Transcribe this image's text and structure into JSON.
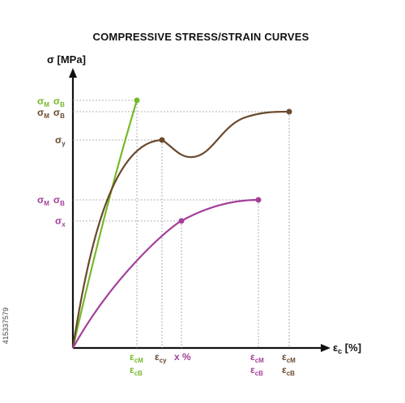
{
  "title": "COMPRESSIVE STRESS/STRAIN CURVES",
  "colors": {
    "green": "#76b82a",
    "brown": "#6b4a2e",
    "purple": "#a4409a",
    "axis": "#111111",
    "guide": "#9a9a9a"
  },
  "axes": {
    "y_title": "σ [MPa]",
    "x_title_main": "ε",
    "x_title_sub": "c",
    "x_title_unit": " [%]"
  },
  "y_labels": {
    "green": {
      "a": "σ",
      "a_sub": "M",
      "b": "σ",
      "b_sub": "B"
    },
    "brown": {
      "a": "σ",
      "a_sub": "M",
      "b": "σ",
      "b_sub": "B"
    },
    "brown_y": {
      "a": "σ",
      "a_sub": "y"
    },
    "purple": {
      "a": "σ",
      "a_sub": "M",
      "b": "σ",
      "b_sub": "B"
    },
    "purple_x": {
      "a": "σ",
      "a_sub": "x"
    }
  },
  "x_labels": {
    "green": {
      "top": "ε",
      "top_sub": "cM",
      "bottom": "ε",
      "bottom_sub": "cB"
    },
    "brown_y": {
      "top": "ε",
      "top_sub": "cy"
    },
    "purple_x": {
      "top": "x %"
    },
    "purple": {
      "top": "ε",
      "top_sub": "cM",
      "bottom": "ε",
      "bottom_sub": "cB"
    },
    "brown": {
      "top": "ε",
      "top_sub": "cM",
      "bottom": "ε",
      "bottom_sub": "cB"
    }
  },
  "watermark": "415337579"
}
